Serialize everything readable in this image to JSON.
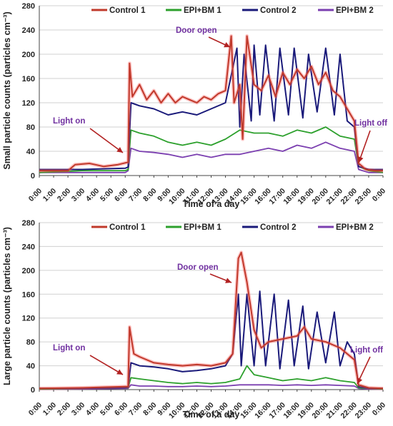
{
  "colors": {
    "control1": "#c0392b",
    "control1_glow": "#ff5a5a",
    "epibm1": "#2ca02c",
    "control2": "#1a1a7a",
    "epibm2": "#7b3fb0",
    "annotation": "#7030a0",
    "arrow": "#b22222",
    "grid": "#d0d0d0"
  },
  "chart_data": [
    {
      "type": "line",
      "ylabel": "Small particle counts (particles cm⁻³)",
      "xlabel": "Time of a day",
      "ylim": [
        0,
        280
      ],
      "yticks": [
        "0",
        "40",
        "80",
        "120",
        "160",
        "200",
        "240",
        "280"
      ],
      "xlim": [
        0,
        24
      ],
      "xticks": [
        "0:00",
        "1:00",
        "2:00",
        "3:00",
        "4:00",
        "5:00",
        "6:00",
        "7:00",
        "8:00",
        "9:00",
        "10:00",
        "11:00",
        "12:00",
        "13:00",
        "14:00",
        "15:00",
        "16:00",
        "17:00",
        "18:00",
        "19:00",
        "20:00",
        "21:00",
        "22:00",
        "23:00",
        "0:00"
      ],
      "grid": "horizontal",
      "legend_position": "top",
      "series": [
        {
          "name": "Control 1",
          "key": "control1",
          "x": [
            0,
            2,
            2.5,
            3.5,
            4.5,
            5.5,
            6.2,
            6.3,
            6.5,
            7,
            7.5,
            8,
            8.5,
            9,
            9.5,
            10,
            10.5,
            11,
            11.5,
            12,
            12.5,
            13,
            13.4,
            13.6,
            14,
            14.2,
            14.5,
            15,
            15.5,
            16,
            16.5,
            17,
            17.5,
            18,
            18.5,
            19,
            19.5,
            20,
            20.5,
            21,
            21.5,
            22,
            22.3,
            22.8,
            23.5,
            24
          ],
          "y": [
            8,
            8,
            18,
            20,
            15,
            18,
            22,
            185,
            130,
            150,
            125,
            140,
            120,
            135,
            120,
            130,
            125,
            120,
            130,
            125,
            135,
            140,
            230,
            120,
            150,
            60,
            230,
            150,
            140,
            165,
            130,
            170,
            150,
            175,
            160,
            180,
            150,
            170,
            140,
            130,
            110,
            90,
            20,
            10,
            8,
            8
          ]
        },
        {
          "name": "EPI+BM 1",
          "key": "epibm1",
          "x": [
            0,
            3,
            6,
            6.2,
            6.4,
            7,
            8,
            9,
            10,
            11,
            12,
            13,
            14,
            15,
            16,
            17,
            18,
            19,
            20,
            21,
            22,
            22.3,
            23,
            24
          ],
          "y": [
            5,
            8,
            8,
            10,
            75,
            70,
            65,
            55,
            50,
            55,
            50,
            60,
            75,
            70,
            70,
            65,
            75,
            70,
            80,
            65,
            60,
            15,
            8,
            5
          ]
        },
        {
          "name": "Control 2",
          "key": "control2",
          "x": [
            0,
            3,
            6,
            6.2,
            6.4,
            7,
            8,
            9,
            10,
            11,
            12,
            13,
            13.8,
            14,
            14.3,
            14.8,
            15,
            15.4,
            15.8,
            16.4,
            16.8,
            17.4,
            17.8,
            18.4,
            18.8,
            19.4,
            20,
            20.6,
            21,
            21.5,
            22,
            22.3,
            23,
            24
          ],
          "y": [
            10,
            10,
            12,
            14,
            120,
            115,
            110,
            100,
            105,
            100,
            110,
            120,
            210,
            80,
            200,
            90,
            215,
            100,
            215,
            90,
            210,
            100,
            210,
            95,
            200,
            105,
            210,
            100,
            200,
            90,
            80,
            15,
            10,
            10
          ]
        },
        {
          "name": "EPI+BM 2",
          "key": "epibm2",
          "x": [
            0,
            3,
            6,
            6.2,
            6.4,
            7,
            8,
            9,
            10,
            11,
            12,
            13,
            14,
            15,
            16,
            17,
            18,
            19,
            20,
            21,
            22,
            22.3,
            23,
            24
          ],
          "y": [
            5,
            5,
            5,
            8,
            45,
            40,
            38,
            35,
            30,
            35,
            30,
            35,
            35,
            40,
            45,
            40,
            50,
            45,
            55,
            45,
            40,
            10,
            5,
            5
          ]
        }
      ],
      "annotations": [
        "Light on",
        "Door open",
        "Light off"
      ]
    },
    {
      "type": "line",
      "ylabel": "Large particle counts (particles cm⁻³)",
      "xlabel": "Time of a day",
      "ylim": [
        0,
        280
      ],
      "yticks": [
        "0",
        "40",
        "80",
        "120",
        "160",
        "200",
        "240",
        "280"
      ],
      "xlim": [
        0,
        24
      ],
      "xticks": [
        "0:00",
        "1:00",
        "2:00",
        "3:00",
        "4:00",
        "5:00",
        "6:00",
        "7:00",
        "8:00",
        "9:00",
        "10:00",
        "11:00",
        "12:00",
        "13:00",
        "14:00",
        "15:00",
        "16:00",
        "17:00",
        "18:00",
        "19:00",
        "20:00",
        "21:00",
        "22:00",
        "23:00",
        "0:00"
      ],
      "grid": "horizontal",
      "legend_position": "top",
      "series": [
        {
          "name": "Control 1",
          "key": "control1",
          "x": [
            0,
            3,
            6,
            6.2,
            6.3,
            6.6,
            7,
            8,
            9,
            10,
            11,
            12,
            13,
            13.5,
            13.9,
            14.1,
            14.5,
            15,
            15.5,
            16,
            17,
            18,
            18.5,
            19,
            20,
            21,
            22,
            22.3,
            23,
            24
          ],
          "y": [
            2,
            3,
            5,
            5,
            105,
            60,
            55,
            45,
            42,
            40,
            42,
            40,
            45,
            60,
            220,
            230,
            180,
            100,
            70,
            80,
            85,
            90,
            105,
            85,
            80,
            70,
            50,
            8,
            3,
            2
          ]
        },
        {
          "name": "EPI+BM 1",
          "key": "epibm1",
          "x": [
            0,
            3,
            6,
            6.2,
            6.4,
            7,
            8,
            9,
            10,
            11,
            12,
            13,
            14,
            14.5,
            15,
            16,
            17,
            18,
            19,
            20,
            21,
            22,
            22.3,
            23,
            24
          ],
          "y": [
            1,
            2,
            3,
            3,
            20,
            18,
            15,
            12,
            10,
            12,
            10,
            12,
            18,
            40,
            25,
            20,
            15,
            18,
            15,
            20,
            15,
            12,
            3,
            2,
            1
          ]
        },
        {
          "name": "Control 2",
          "key": "control2",
          "x": [
            0,
            3,
            6,
            6.2,
            6.4,
            7,
            8,
            9,
            10,
            11,
            12,
            13,
            13.5,
            13.9,
            14.1,
            14.5,
            15,
            15.4,
            15.8,
            16.4,
            16.8,
            17.4,
            17.8,
            18.4,
            18.8,
            19.4,
            20,
            20.6,
            21,
            21.5,
            22,
            22.3,
            23,
            24
          ],
          "y": [
            2,
            2,
            3,
            4,
            45,
            40,
            38,
            35,
            30,
            32,
            35,
            40,
            60,
            160,
            40,
            160,
            40,
            165,
            40,
            160,
            35,
            150,
            40,
            140,
            35,
            130,
            45,
            130,
            40,
            80,
            60,
            5,
            2,
            2
          ]
        },
        {
          "name": "EPI+BM 2",
          "key": "epibm2",
          "x": [
            0,
            3,
            6,
            6.2,
            6.4,
            7,
            8,
            9,
            10,
            11,
            12,
            13,
            14,
            15,
            16,
            17,
            18,
            19,
            20,
            21,
            22,
            22.3,
            23,
            24
          ],
          "y": [
            1,
            1,
            2,
            2,
            8,
            6,
            6,
            5,
            5,
            6,
            5,
            6,
            8,
            8,
            8,
            7,
            8,
            7,
            8,
            7,
            6,
            2,
            1,
            1
          ]
        }
      ],
      "annotations": [
        "Light on",
        "Door open",
        "Light off"
      ]
    }
  ]
}
